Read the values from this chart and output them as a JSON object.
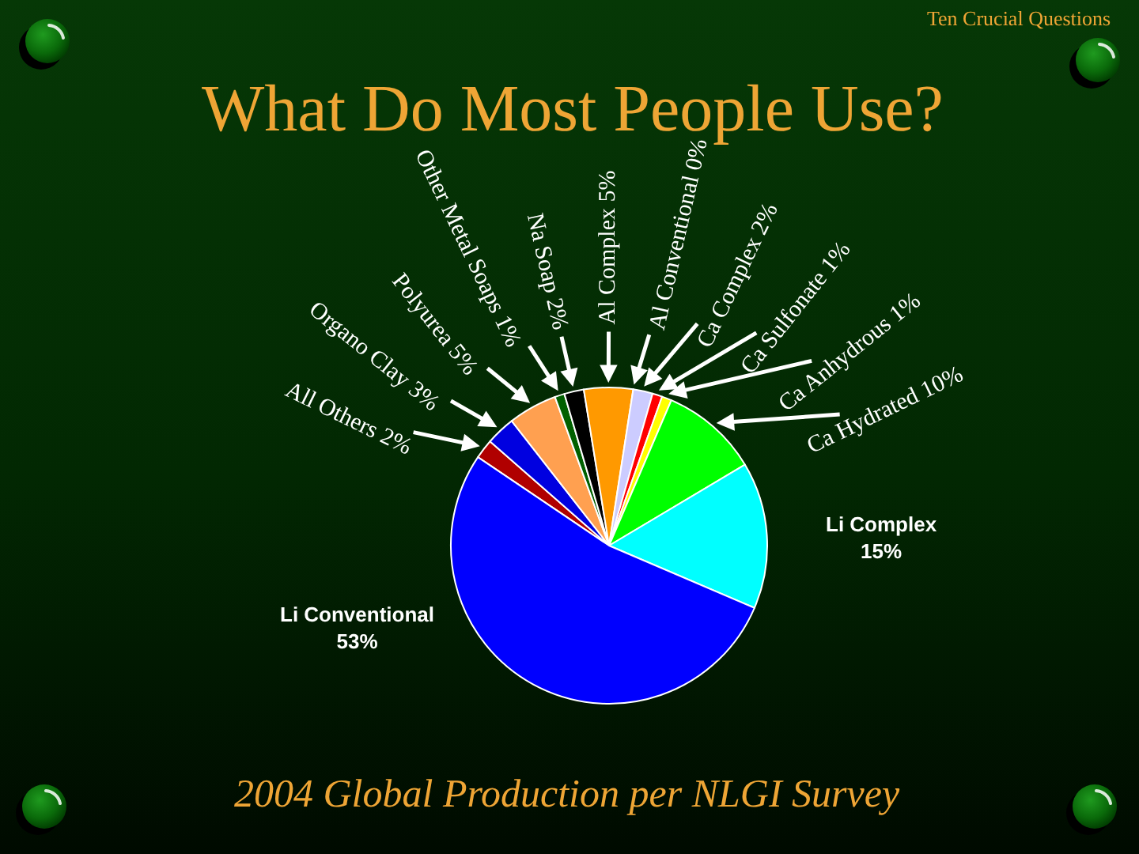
{
  "chart_data": {
    "type": "pie",
    "title": "What Do Most People Use?",
    "annotations": [
      "Ten Crucial Questions",
      "2004 Global Production per NLGI Survey"
    ],
    "categories": [
      "All Others",
      "Organo Clay",
      "Polyurea",
      "Other Metal Soaps",
      "Na Soap",
      "Al Complex",
      "Al Conventional",
      "Ca Complex",
      "Ca Sulfonate",
      "Ca Anhydrous",
      "Ca Hydrated",
      "Li Complex",
      "Li Conventional"
    ],
    "values": [
      2,
      3,
      5,
      1,
      2,
      5,
      0,
      2,
      1,
      1,
      10,
      15,
      53
    ],
    "colors": [
      "#b00000",
      "#0000e0",
      "#ffa050",
      "#006000",
      "#000000",
      "#ff9900",
      "#ffffff",
      "#ccccff",
      "#ff0000",
      "#ffff00",
      "#00ff00",
      "#00ffff",
      "#0000ff"
    ],
    "value_labels": [
      "2%",
      "3%",
      "5%",
      "1%",
      "2%",
      "5%",
      "0%",
      "2%",
      "1%",
      "1%",
      "10%",
      "15%",
      "53%"
    ]
  }
}
